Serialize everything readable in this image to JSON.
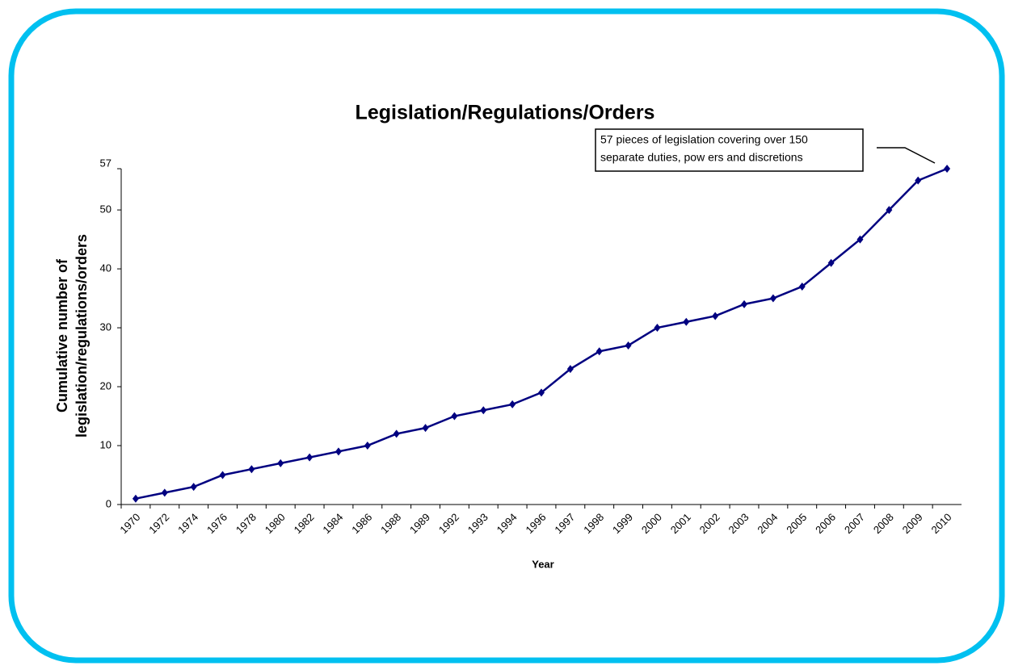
{
  "chart_data": {
    "type": "line",
    "title": "Legislation/Regulations/Orders",
    "x_label": "Year",
    "y_label": [
      "Cumulative number of",
      "legislation/regulations/orders"
    ],
    "annotation": [
      "57 pieces of legislation covering over 150",
      "separate duties, pow ers and discretions"
    ],
    "categories": [
      "1970",
      "1972",
      "1974",
      "1976",
      "1978",
      "1980",
      "1982",
      "1984",
      "1986",
      "1988",
      "1989",
      "1992",
      "1993",
      "1994",
      "1996",
      "1997",
      "1998",
      "1999",
      "2000",
      "2001",
      "2002",
      "2003",
      "2004",
      "2005",
      "2006",
      "2007",
      "2008",
      "2009",
      "2010"
    ],
    "series": [
      {
        "color": "#000080",
        "values": [
          1,
          2,
          3,
          5,
          6,
          7,
          8,
          9,
          10,
          12,
          13,
          15,
          16,
          17,
          19,
          23,
          26,
          27,
          30,
          31,
          32,
          34,
          35,
          37,
          41,
          45,
          50,
          55,
          57
        ]
      }
    ],
    "ylim": [
      0,
      57
    ],
    "yticks": [
      0,
      10,
      20,
      30,
      40,
      50,
      57
    ],
    "grid": false
  }
}
